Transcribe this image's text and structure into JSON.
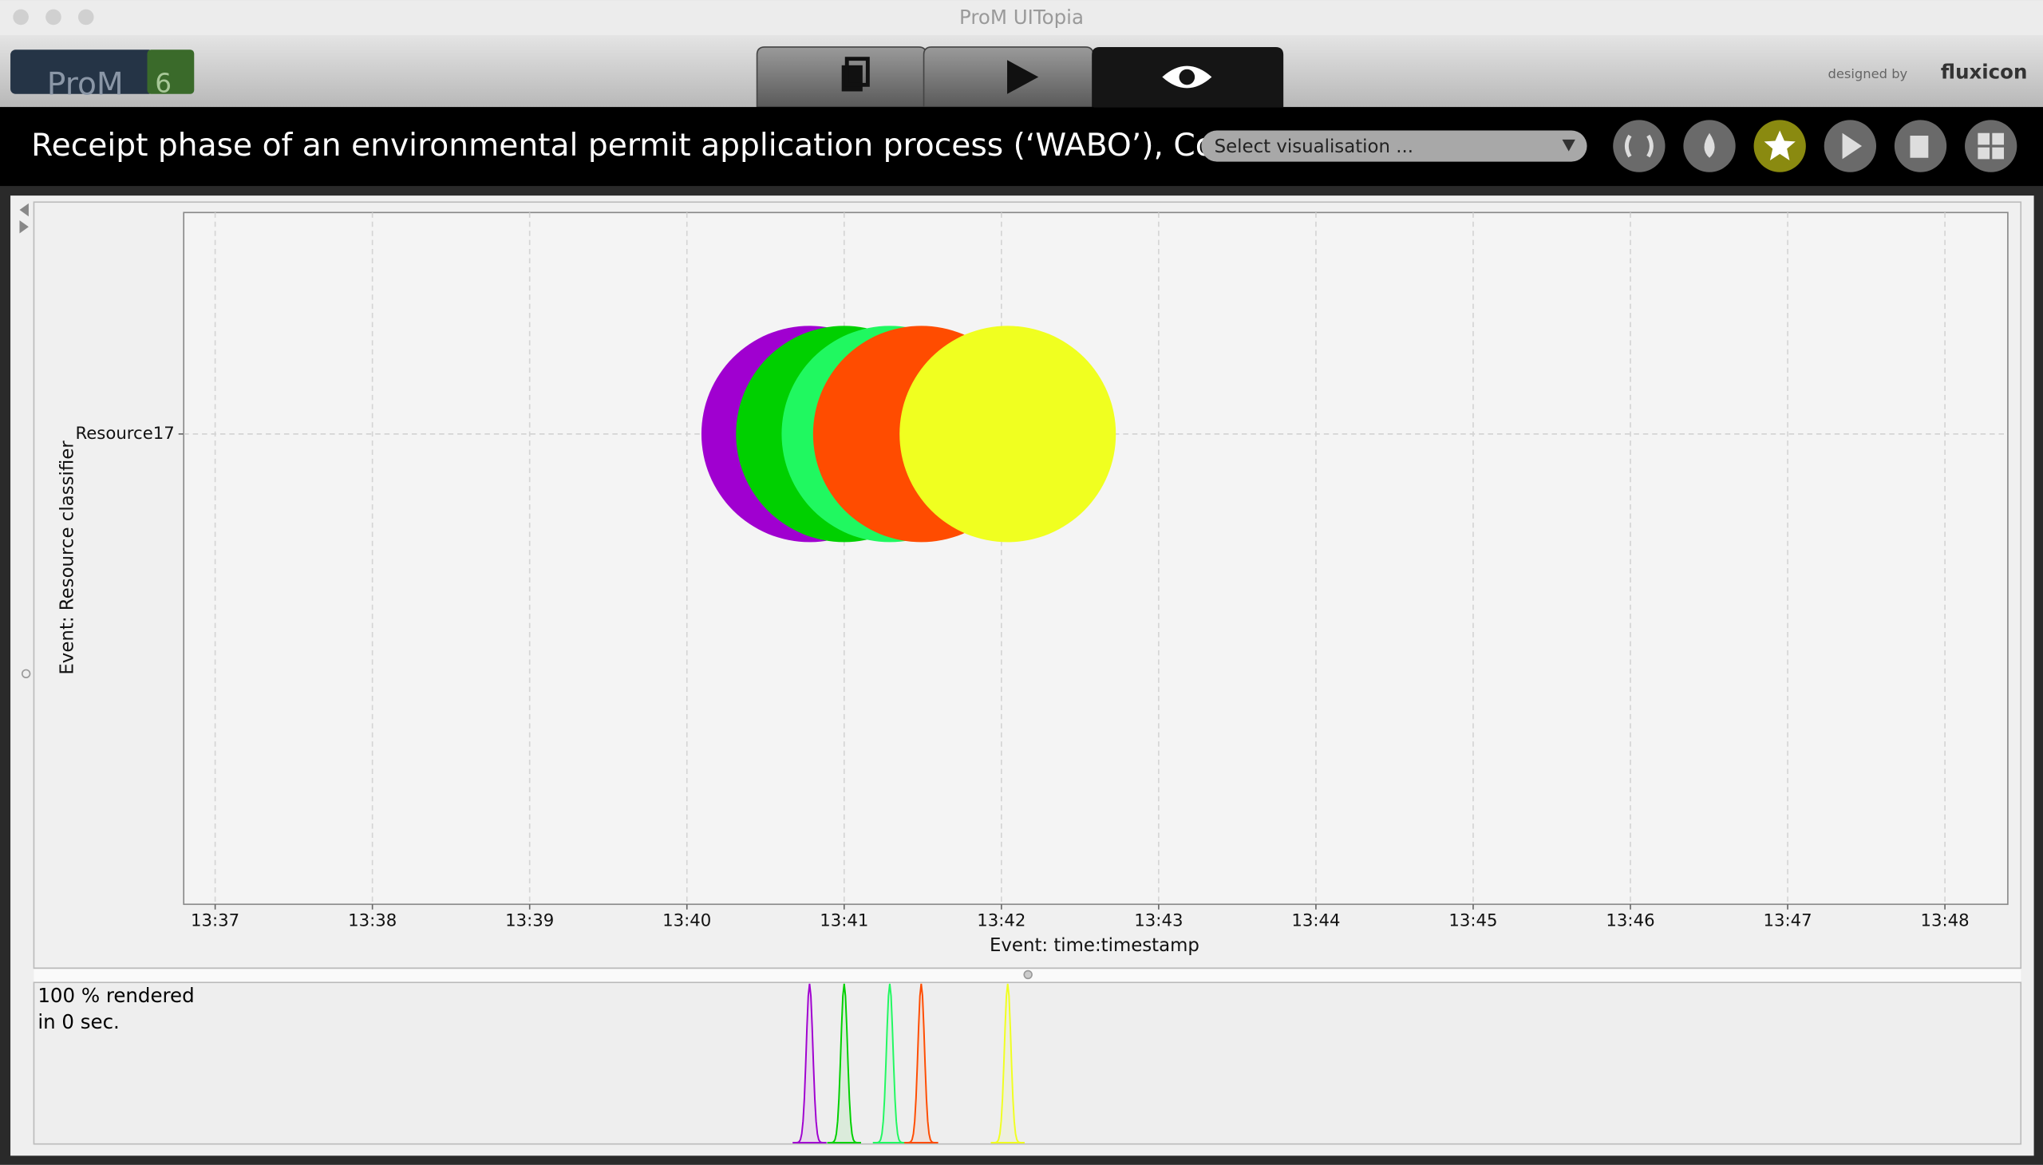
{
  "window_title": "ProM UITopia",
  "logo": {
    "name": "ProM",
    "version": "6"
  },
  "credit": {
    "prefix": "designed by",
    "brand": "fluxicon"
  },
  "header": {
    "title": "Receipt phase of an environmental permit application process (‘WABO’), CoS",
    "dropdown": "Select visualisation ..."
  },
  "status": [
    "100 % rendered",
    "in 0 sec."
  ],
  "chart_data": {
    "type": "scatter",
    "x_label": "Event: time:timestamp",
    "y_label": "Event: Resource classifier",
    "categories": [
      "Resource17"
    ],
    "x": [
      820.78,
      821.0,
      821.29,
      821.49,
      822.04
    ],
    "y": [
      "Resource17",
      "Resource17",
      "Resource17",
      "Resource17",
      "Resource17"
    ],
    "colors": [
      "#a000d0",
      "#00d000",
      "#20f860",
      "#ff4c00",
      "#f0ff20"
    ],
    "xlim": [
      816.8,
      828.4
    ],
    "xticks": [
      {
        "value": 817,
        "label": "13:37"
      },
      {
        "value": 818,
        "label": "13:38"
      },
      {
        "value": 819,
        "label": "13:39"
      },
      {
        "value": 820,
        "label": "13:40"
      },
      {
        "value": 821,
        "label": "13:41"
      },
      {
        "value": 822,
        "label": "13:42"
      },
      {
        "value": 823,
        "label": "13:43"
      },
      {
        "value": 824,
        "label": "13:44"
      },
      {
        "value": 825,
        "label": "13:45"
      },
      {
        "value": 826,
        "label": "13:46"
      },
      {
        "value": 827,
        "label": "13:47"
      },
      {
        "value": 828,
        "label": "13:48"
      }
    ],
    "grid": true
  }
}
